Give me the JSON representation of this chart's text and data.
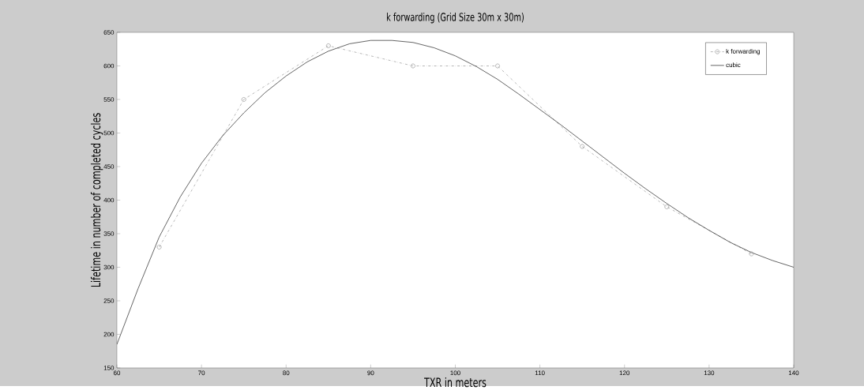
{
  "chart_data": {
    "type": "line",
    "title": "k forwarding (Grid Size 30m x 30m)",
    "xlabel": "TXR in meters",
    "ylabel": "Lifetime in number of completed cycles",
    "series": [
      {
        "name": "k forwarding",
        "color": "#999999",
        "marker": "circle",
        "line_style": "dashdot",
        "x": [
          65,
          75,
          85,
          95,
          105,
          115,
          125,
          135
        ],
        "values": [
          330,
          550,
          630,
          600,
          600,
          480,
          390,
          320
        ]
      },
      {
        "name": "cubic",
        "color": "#222222",
        "marker": "none",
        "line_style": "solid",
        "x": [
          60,
          62.5,
          65,
          67.5,
          70,
          72.5,
          75,
          77.5,
          80,
          82.5,
          85,
          87.5,
          90,
          92.5,
          95,
          97.5,
          100,
          102.5,
          105,
          107.5,
          110,
          112.5,
          115,
          117.5,
          120,
          122.5,
          125,
          127.5,
          130,
          132.5,
          135,
          137.5,
          140
        ],
        "values": [
          185,
          268,
          345,
          405,
          455,
          496,
          530,
          560,
          585,
          606,
          622,
          633,
          638,
          638,
          635,
          627,
          615,
          599,
          580,
          558,
          535,
          512,
          488,
          464,
          440,
          417,
          395,
          374,
          355,
          337,
          322,
          310,
          300
        ]
      }
    ],
    "xlim": [
      60,
      140
    ],
    "xticks": [
      60,
      70,
      80,
      90,
      100,
      110,
      120,
      130,
      140
    ],
    "ylim": [
      150,
      650
    ],
    "yticks": [
      150,
      200,
      250,
      300,
      350,
      400,
      450,
      500,
      550,
      600,
      650
    ],
    "grid": false,
    "legend": "top right"
  }
}
